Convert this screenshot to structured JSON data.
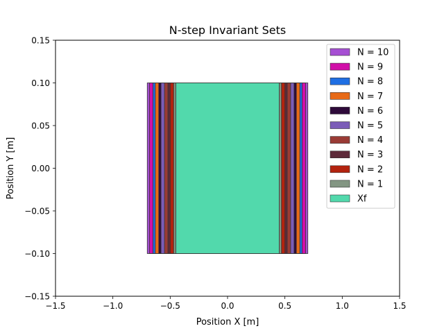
{
  "chart_data": {
    "type": "area",
    "title": "N-step Invariant Sets",
    "xlabel": "Position X [m]",
    "ylabel": "Position Y [m]",
    "xlim": [
      -1.5,
      1.5
    ],
    "ylim": [
      -0.15,
      0.15
    ],
    "xticks": [
      -1.5,
      -1.0,
      -0.5,
      0.0,
      0.5,
      1.0,
      1.5
    ],
    "xtick_labels": [
      "−1.5",
      "−1.0",
      "−0.5",
      "0.0",
      "0.5",
      "1.0",
      "1.5"
    ],
    "yticks": [
      -0.15,
      -0.1,
      -0.05,
      0.0,
      0.05,
      0.1,
      0.15
    ],
    "ytick_labels": [
      "−0.15",
      "−0.10",
      "−0.05",
      "0.00",
      "0.05",
      "0.10",
      "0.15"
    ],
    "grid": false,
    "legend_position": "top-right",
    "series": [
      {
        "name": "N = 10",
        "x_range": [
          -0.7,
          0.7
        ],
        "y_range": [
          -0.1,
          0.1
        ],
        "color": "#a64fd3"
      },
      {
        "name": "N = 9",
        "x_range": [
          -0.68,
          0.68
        ],
        "y_range": [
          -0.1,
          0.1
        ],
        "color": "#d10fa8"
      },
      {
        "name": "N = 8",
        "x_range": [
          -0.65,
          0.65
        ],
        "y_range": [
          -0.1,
          0.1
        ],
        "color": "#1f6fe3"
      },
      {
        "name": "N = 7",
        "x_range": [
          -0.63,
          0.63
        ],
        "y_range": [
          -0.1,
          0.1
        ],
        "color": "#e86a17"
      },
      {
        "name": "N = 6",
        "x_range": [
          -0.6,
          0.6
        ],
        "y_range": [
          -0.1,
          0.1
        ],
        "color": "#2e0a3a"
      },
      {
        "name": "N = 5",
        "x_range": [
          -0.58,
          0.58
        ],
        "y_range": [
          -0.1,
          0.1
        ],
        "color": "#7b5cb8"
      },
      {
        "name": "N = 4",
        "x_range": [
          -0.55,
          0.55
        ],
        "y_range": [
          -0.1,
          0.1
        ],
        "color": "#9a3b35"
      },
      {
        "name": "N = 3",
        "x_range": [
          -0.52,
          0.52
        ],
        "y_range": [
          -0.1,
          0.1
        ],
        "color": "#5e2a3a"
      },
      {
        "name": "N = 2",
        "x_range": [
          -0.5,
          0.5
        ],
        "y_range": [
          -0.1,
          0.1
        ],
        "color": "#b3230f"
      },
      {
        "name": "N = 1",
        "x_range": [
          -0.47,
          0.47
        ],
        "y_range": [
          -0.1,
          0.1
        ],
        "color": "#839683"
      },
      {
        "name": "Xf",
        "x_range": [
          -0.45,
          0.45
        ],
        "y_range": [
          -0.1,
          0.1
        ],
        "color": "#52d9ac"
      }
    ]
  }
}
